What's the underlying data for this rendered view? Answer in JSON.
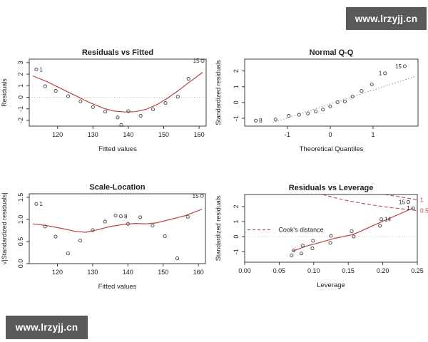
{
  "watermarks": {
    "top_right": "www.lrzyjj.cn",
    "bottom_left": "www.lrzyjj.cn"
  },
  "colors": {
    "watermark_bg": "#595959",
    "watermark_text": "#ffffff",
    "smooth_line": "#b94444",
    "cooks_line": "#c04848",
    "contour_label": "#c43c3c",
    "reference_line": "#bdbdbd",
    "qq_line": "#8f8f8f",
    "point_stroke": "#3f3f3f",
    "axis": "#3a3a3a",
    "text": "#222222"
  },
  "chart_data": [
    {
      "id": "residuals-vs-fitted",
      "type": "scatter",
      "title": "Residuals vs Fitted",
      "xlabel": "Fitted values",
      "ylabel": "Residuals",
      "xlim": [
        112,
        162
      ],
      "ylim": [
        -2.5,
        3.3
      ],
      "xticks": [
        120,
        130,
        140,
        150,
        160
      ],
      "xtick_labels": [
        "120",
        "130",
        "140",
        "150",
        "160"
      ],
      "yticks": [
        -2,
        -1,
        0,
        1,
        2,
        3
      ],
      "ytick_labels": [
        "-2",
        "-1",
        "0",
        "1",
        "2",
        "3"
      ],
      "refline_h": 0,
      "points": [
        [
          114,
          2.4
        ],
        [
          116.5,
          0.95
        ],
        [
          119.5,
          0.55
        ],
        [
          123,
          0.08
        ],
        [
          126.5,
          -0.35
        ],
        [
          130,
          -0.85
        ],
        [
          133.5,
          -1.25
        ],
        [
          137,
          -1.75
        ],
        [
          138,
          -2.4
        ],
        [
          140,
          -1.2
        ],
        [
          143.5,
          -1.6
        ],
        [
          147,
          -1.05
        ],
        [
          150.5,
          -0.5
        ],
        [
          154,
          0.05
        ],
        [
          157,
          1.6
        ],
        [
          161,
          3.15
        ]
      ],
      "point_labels": [
        {
          "text": "1",
          "x": 114,
          "y": 2.4,
          "side": "right"
        },
        {
          "text": "15",
          "x": 161,
          "y": 3.15,
          "side": "left"
        }
      ],
      "smooth": [
        [
          113,
          1.85
        ],
        [
          117,
          1.35
        ],
        [
          121,
          0.75
        ],
        [
          125,
          0.15
        ],
        [
          129,
          -0.45
        ],
        [
          133,
          -0.95
        ],
        [
          136,
          -1.2
        ],
        [
          139,
          -1.28
        ],
        [
          142,
          -1.25
        ],
        [
          145,
          -1.05
        ],
        [
          148,
          -0.65
        ],
        [
          151,
          -0.1
        ],
        [
          154,
          0.55
        ],
        [
          157,
          1.25
        ],
        [
          161,
          2.15
        ]
      ]
    },
    {
      "id": "normal-qq",
      "type": "scatter",
      "title": "Normal Q-Q",
      "xlabel": "Theoretical Quantiles",
      "ylabel": "Standardized residuals",
      "xlim": [
        -2,
        2.05
      ],
      "ylim": [
        -1.5,
        2.75
      ],
      "xticks": [
        -1,
        0,
        1
      ],
      "xtick_labels": [
        "-1",
        "0",
        "1"
      ],
      "yticks": [
        -1,
        0,
        1,
        2
      ],
      "ytick_labels": [
        "-1",
        "0",
        "1",
        "2"
      ],
      "line": {
        "x1": -1.35,
        "y1": -1.28,
        "x2": 1.97,
        "y2": 1.64
      },
      "points": [
        [
          -1.74,
          -1.15
        ],
        [
          -1.28,
          -1.08
        ],
        [
          -0.97,
          -0.85
        ],
        [
          -0.73,
          -0.78
        ],
        [
          -0.52,
          -0.7
        ],
        [
          -0.34,
          -0.57
        ],
        [
          -0.17,
          -0.45
        ],
        [
          0,
          -0.25
        ],
        [
          0.17,
          0.02
        ],
        [
          0.34,
          0.07
        ],
        [
          0.52,
          0.38
        ],
        [
          0.73,
          0.73
        ],
        [
          0.97,
          1.15
        ],
        [
          1.28,
          1.85
        ],
        [
          1.74,
          2.3
        ]
      ],
      "point_labels": [
        {
          "text": "8",
          "x": -1.74,
          "y": -1.15,
          "side": "right"
        },
        {
          "text": "1",
          "x": 1.28,
          "y": 1.85,
          "side": "left"
        },
        {
          "text": "15",
          "x": 1.74,
          "y": 2.3,
          "side": "left"
        }
      ]
    },
    {
      "id": "scale-location",
      "type": "scatter",
      "title": "Scale-Location",
      "xlabel": "Fitted values",
      "ylabel": "√|Standardized residuals|",
      "xlim": [
        112,
        162
      ],
      "ylim": [
        0,
        1.58
      ],
      "xticks": [
        120,
        130,
        140,
        150,
        160
      ],
      "xtick_labels": [
        "120",
        "130",
        "140",
        "150",
        "160"
      ],
      "yticks": [
        0,
        0.5,
        1,
        1.5
      ],
      "ytick_labels": [
        "0.0",
        "0.5",
        "1.0",
        "1.5"
      ],
      "points": [
        [
          114,
          1.35
        ],
        [
          116.5,
          0.84
        ],
        [
          119.5,
          0.61
        ],
        [
          123,
          0.23
        ],
        [
          126.5,
          0.52
        ],
        [
          130,
          0.76
        ],
        [
          133.5,
          0.95
        ],
        [
          136.5,
          1.09
        ],
        [
          138,
          1.07
        ],
        [
          140,
          0.9
        ],
        [
          143.5,
          1.05
        ],
        [
          147,
          0.86
        ],
        [
          150.5,
          0.62
        ],
        [
          154,
          0.12
        ],
        [
          157,
          1.06
        ],
        [
          161,
          1.53
        ]
      ],
      "point_labels": [
        {
          "text": "1",
          "x": 114,
          "y": 1.35,
          "side": "right"
        },
        {
          "text": "8",
          "x": 138,
          "y": 1.07,
          "side": "right"
        },
        {
          "text": "15",
          "x": 161,
          "y": 1.53,
          "side": "left"
        }
      ],
      "smooth": [
        [
          113,
          0.9
        ],
        [
          117,
          0.86
        ],
        [
          121,
          0.8
        ],
        [
          125,
          0.73
        ],
        [
          128,
          0.71
        ],
        [
          131,
          0.76
        ],
        [
          135,
          0.84
        ],
        [
          139,
          0.89
        ],
        [
          142,
          0.91
        ],
        [
          145,
          0.9
        ],
        [
          148,
          0.92
        ],
        [
          152,
          1.0
        ],
        [
          156,
          1.08
        ],
        [
          161,
          1.23
        ]
      ]
    },
    {
      "id": "residuals-vs-leverage",
      "type": "scatter",
      "title": "Residuals vs Leverage",
      "xlabel": "Leverage",
      "ylabel": "Standardized residuals",
      "xlim": [
        0,
        0.25
      ],
      "ylim": [
        -1.7,
        2.8
      ],
      "xticks": [
        0,
        0.05,
        0.1,
        0.15,
        0.2,
        0.25
      ],
      "xtick_labels": [
        "0.00",
        "0.05",
        "0.10",
        "0.15",
        "0.20",
        "0.25"
      ],
      "yticks": [
        -1,
        0,
        1,
        2
      ],
      "ytick_labels": [
        "-1",
        "0",
        "1",
        "2"
      ],
      "refline_h": 0,
      "refline_v": 0,
      "points": [
        [
          0.068,
          -1.25
        ],
        [
          0.071,
          -0.92
        ],
        [
          0.082,
          -1.12
        ],
        [
          0.084,
          -0.58
        ],
        [
          0.098,
          -0.78
        ],
        [
          0.099,
          -0.28
        ],
        [
          0.124,
          -0.42
        ],
        [
          0.125,
          0.05
        ],
        [
          0.155,
          0.35
        ],
        [
          0.158,
          0
        ],
        [
          0.196,
          0.72
        ],
        [
          0.198,
          1.15
        ],
        [
          0.237,
          2.3
        ],
        [
          0.244,
          1.88
        ]
      ],
      "point_labels": [
        {
          "text": "14",
          "x": 0.198,
          "y": 1.15,
          "side": "right"
        },
        {
          "text": "15",
          "x": 0.237,
          "y": 2.3,
          "side": "left"
        },
        {
          "text": "1",
          "x": 0.244,
          "y": 1.88,
          "side": "left"
        }
      ],
      "smooth": [
        [
          0.07,
          -0.95
        ],
        [
          0.09,
          -0.62
        ],
        [
          0.11,
          -0.38
        ],
        [
          0.13,
          -0.12
        ],
        [
          0.155,
          0.12
        ],
        [
          0.165,
          0.3
        ],
        [
          0.2,
          1.02
        ],
        [
          0.244,
          1.9
        ]
      ],
      "cooks_contours": [
        {
          "label": "0.5",
          "points": [
            [
              0.113,
              2.8
            ],
            [
              0.13,
              2.59
            ],
            [
              0.15,
              2.38
            ],
            [
              0.18,
              2.13
            ],
            [
              0.21,
              1.94
            ],
            [
              0.25,
              1.73
            ]
          ]
        },
        {
          "label": "1",
          "points": [
            [
              0.203,
              2.8
            ],
            [
              0.225,
              2.64
            ],
            [
              0.25,
              2.45
            ]
          ]
        }
      ],
      "legend": {
        "text": "Cook's distance",
        "line_x1": 0.004,
        "line_x2": 0.04,
        "x": 0.049,
        "y": 0.45
      }
    }
  ]
}
